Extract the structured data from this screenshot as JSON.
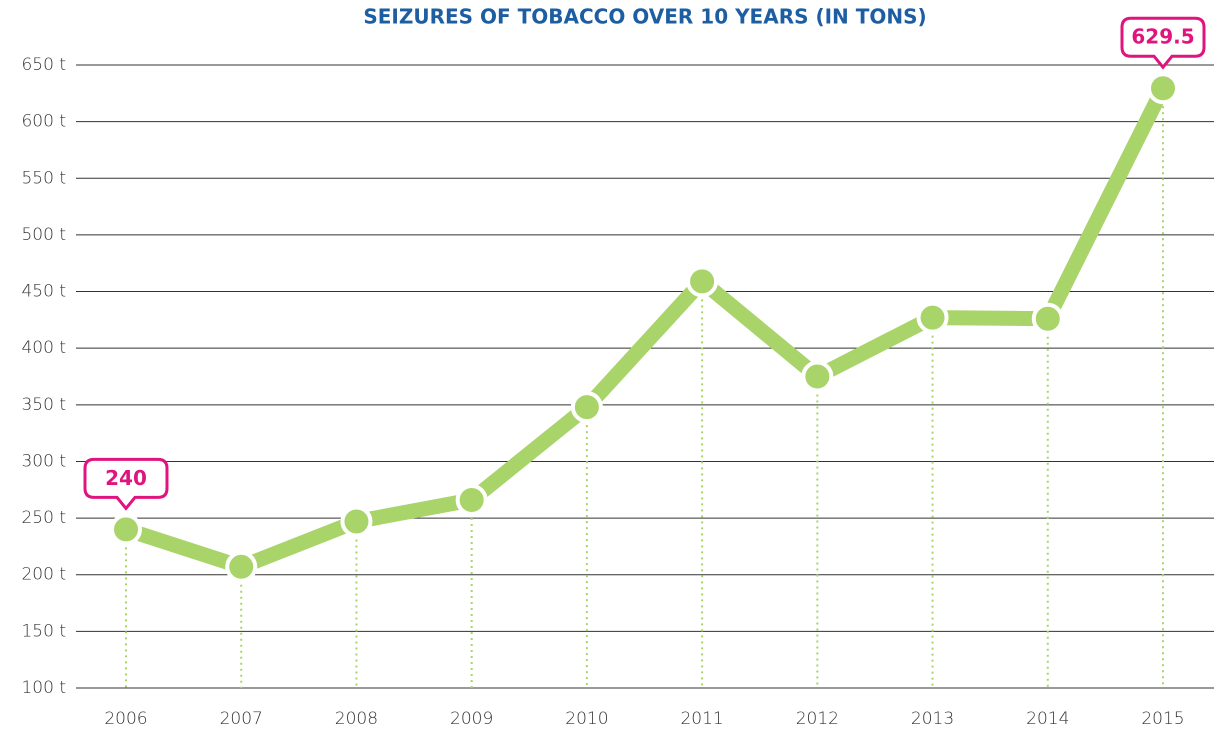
{
  "chart_data": {
    "type": "line",
    "title": "SEIZURES OF TOBACCO OVER 10 YEARS (IN TONS)",
    "categories": [
      "2006",
      "2007",
      "2008",
      "2009",
      "2010",
      "2011",
      "2012",
      "2013",
      "2014",
      "2015"
    ],
    "series": [
      {
        "name": "Seizures",
        "color": "#a8d46a",
        "values": [
          240,
          207,
          247,
          266,
          348,
          459,
          375,
          427,
          426,
          629.5
        ],
        "value_labels": [
          "240",
          null,
          null,
          null,
          null,
          null,
          null,
          null,
          null,
          "629.5"
        ]
      }
    ],
    "ylim": [
      100,
      650
    ],
    "yticks": [
      {
        "value": 100,
        "label": "100 t"
      },
      {
        "value": 150,
        "label": "150 t"
      },
      {
        "value": 200,
        "label": "200 t"
      },
      {
        "value": 250,
        "label": "250 t"
      },
      {
        "value": 300,
        "label": "300 t"
      },
      {
        "value": 350,
        "label": "350 t"
      },
      {
        "value": 400,
        "label": "400 t"
      },
      {
        "value": 450,
        "label": "450 t"
      },
      {
        "value": 500,
        "label": "500 t"
      },
      {
        "value": 550,
        "label": "550 t"
      },
      {
        "value": 600,
        "label": "600 t"
      },
      {
        "value": 650,
        "label": "650 t"
      }
    ],
    "grid": true,
    "label_color": "#e0147f"
  }
}
